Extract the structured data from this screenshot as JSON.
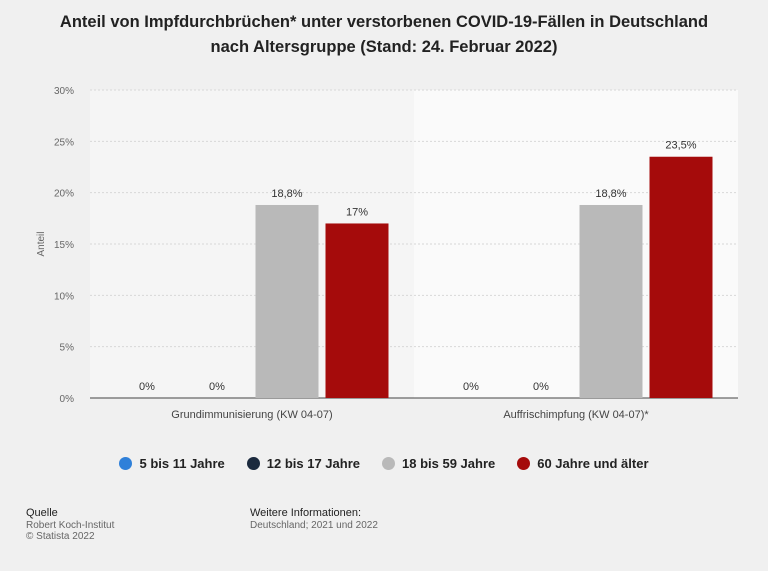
{
  "title_line1": "Anteil von Impfdurchbrüchen* unter verstorbenen COVID-19-Fällen in Deutschland",
  "title_line2": "nach Altersgruppe (Stand: 24. Februar 2022)",
  "chart_data": {
    "type": "bar",
    "categories": [
      "Grundimmunisierung (KW 04-07)",
      "Auffrischimpfung (KW 04-07)*"
    ],
    "series": [
      {
        "name": "5 bis 11 Jahre",
        "color": "#2f80d9",
        "values": [
          0,
          0
        ],
        "labels": [
          "0%",
          "0%"
        ]
      },
      {
        "name": "12 bis 17 Jahre",
        "color": "#1b2a3e",
        "values": [
          0,
          0
        ],
        "labels": [
          "0%",
          "0%"
        ]
      },
      {
        "name": "18 bis 59 Jahre",
        "color": "#b9b9b9",
        "values": [
          18.8,
          18.8
        ],
        "labels": [
          "18,8%",
          "18,8%"
        ]
      },
      {
        "name": "60 Jahre und älter",
        "color": "#a50b0b",
        "values": [
          17,
          23.5
        ],
        "labels": [
          "17%",
          "23,5%"
        ]
      }
    ],
    "ylabel": "Anteil",
    "ylim": [
      0,
      30
    ],
    "yticks": [
      "0%",
      "5%",
      "10%",
      "15%",
      "20%",
      "25%",
      "30%"
    ],
    "grid": true,
    "legend_position": "bottom"
  },
  "footer": {
    "source_heading": "Quelle",
    "source_line1": "Robert Koch-Institut",
    "source_line2": "© Statista 2022",
    "info_heading": "Weitere Informationen:",
    "info_line1": "Deutschland; 2021 und 2022"
  }
}
